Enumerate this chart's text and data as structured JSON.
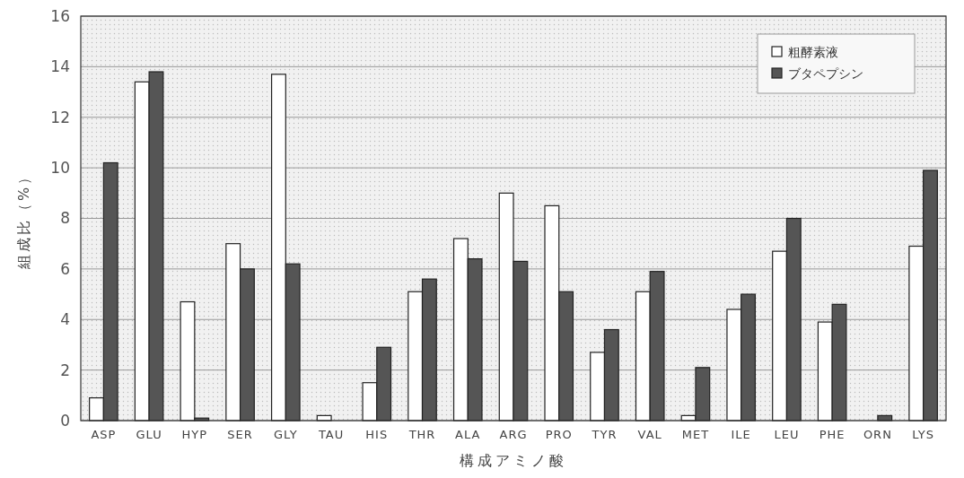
{
  "chart_data": {
    "type": "bar",
    "xlabel": "構成アミノ酸",
    "ylabel": "組成比（%）",
    "categories": [
      "ASP",
      "GLU",
      "HYP",
      "SER",
      "GLY",
      "TAU",
      "HIS",
      "THR",
      "ALA",
      "ARG",
      "PRO",
      "TYR",
      "VAL",
      "MET",
      "ILE",
      "LEU",
      "PHE",
      "ORN",
      "LYS"
    ],
    "series": [
      {
        "name": "粗酵素液",
        "color": "#ffffff",
        "values": [
          0.9,
          13.4,
          4.7,
          7.0,
          13.7,
          0.2,
          1.5,
          5.1,
          7.2,
          9.0,
          8.5,
          2.7,
          5.1,
          0.2,
          4.4,
          6.7,
          3.9,
          0,
          6.9
        ]
      },
      {
        "name": "ブタペプシン",
        "color": "#555555",
        "values": [
          10.2,
          13.8,
          0.1,
          6.0,
          6.2,
          0,
          2.9,
          5.6,
          6.4,
          6.3,
          5.1,
          3.6,
          5.9,
          2.1,
          5.0,
          8.0,
          4.6,
          0.2,
          9.9
        ]
      }
    ],
    "ylim": [
      0,
      16
    ],
    "yticks": [
      0,
      2,
      4,
      6,
      8,
      10,
      12,
      14,
      16
    ],
    "grid": "y",
    "legend": "top right"
  }
}
